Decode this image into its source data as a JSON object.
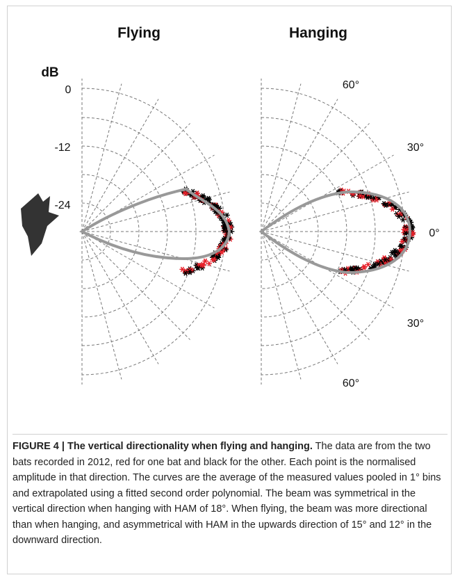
{
  "figure": {
    "panels": [
      {
        "title": "Flying",
        "unit": "dB",
        "radial_ticks": [
          "0",
          "-12",
          "-24"
        ]
      },
      {
        "title": "Hanging",
        "angle_ticks": [
          "60°",
          "30°",
          "0°",
          "30°",
          "60°"
        ]
      }
    ]
  },
  "caption": {
    "label": "FIGURE 4 | The vertical directionality when flying and hanging.",
    "text": "The data are from the two bats recorded in 2012, red for one bat and black for the other. Each point is the normalised amplitude in that direction. The curves are the average of the measured values pooled in 1° bins and extrapolated using a fitted second order polynomial. The beam was symmetrical in the vertical direction when hanging with HAM of 18°. When flying, the beam was more directional than when hanging, and asymmetrical with HAM in the upwards direction of 15° and 12° in the downward direction."
  }
}
